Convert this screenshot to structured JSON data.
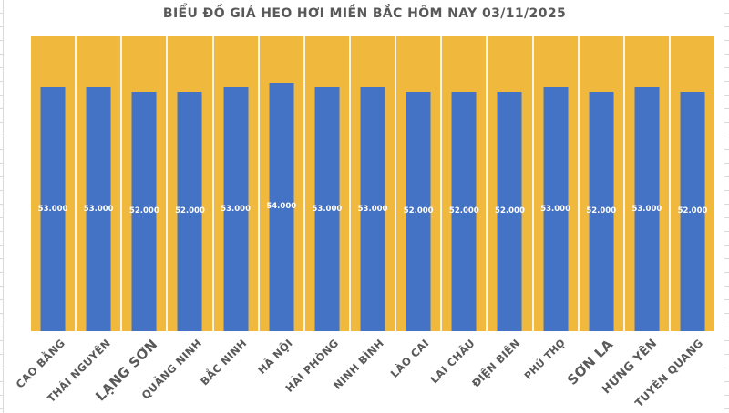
{
  "chart_data": {
    "type": "bar",
    "title": "BIỂU ĐỒ GIÁ HEO HƠI MIỀN BẮC HÔM NAY 03/11/2025",
    "categories": [
      "CAO BẰNG",
      "THÁI NGUYÊN",
      "LẠNG SƠN",
      "QUẢNG NINH",
      "BẮC NINH",
      "HÀ NỘI",
      "HẢI PHÒNG",
      "NINH BÌNH",
      "LÀO CAI",
      "LAI CHÂU",
      "ĐIỆN BIÊN",
      "PHÚ THỌ",
      "SƠN LA",
      "HƯNG YÊN",
      "TUYÊN QUANG"
    ],
    "values": [
      53000,
      53000,
      52000,
      52000,
      53000,
      54000,
      53000,
      53000,
      52000,
      52000,
      52000,
      53000,
      52000,
      53000,
      52000
    ],
    "value_labels": [
      "53.000",
      "53.000",
      "52.000",
      "52.000",
      "53.000",
      "54.000",
      "53.000",
      "53.000",
      "52.000",
      "52.000",
      "52.000",
      "53.000",
      "52.000",
      "53.000",
      "52.000"
    ],
    "xlabel": "",
    "ylabel": "",
    "ylim_estimate": [
      0,
      64000
    ],
    "y_axis_visible": false,
    "legend": "none",
    "gridlines": "vertical white category separators on plot background",
    "category_label_rotation_deg": -45,
    "category_label_scales": [
      1,
      1,
      1.28,
      1,
      1,
      1,
      1,
      1,
      1,
      1,
      1,
      0.95,
      1.28,
      1.12,
      1.03
    ]
  },
  "colors": {
    "page_background": "#FFFFFF",
    "plot_background": "#F0B93E",
    "bar_fill": "#4472C4",
    "title_text": "#595959",
    "category_label_text": "#595959",
    "value_label_text": "#FFFFFF",
    "column_separator": "#FFFFFF",
    "spreadsheet_gridline": "#D9D9D9"
  }
}
